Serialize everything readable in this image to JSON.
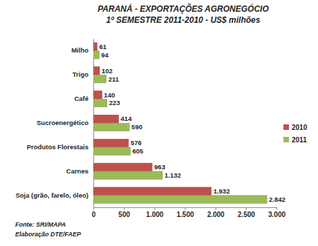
{
  "chart_data": {
    "type": "bar",
    "orientation": "horizontal",
    "title": "PARANÁ - EXPORTAÇÕES AGRONEGÓCIO",
    "subtitle": "1º SEMESTRE 2011-2010  - US$ milhões",
    "categories": [
      "Milho",
      "Trigo",
      "Café",
      "Sucroenergético",
      "Produtos Florestais",
      "Carnes",
      "Soja (grão, farelo, óleo)"
    ],
    "series": [
      {
        "name": "2010",
        "color": "#c0504d",
        "values": [
          61,
          102,
          140,
          414,
          576,
          963,
          1932
        ],
        "value_labels": [
          "61",
          "102",
          "140",
          "414",
          "576",
          "963",
          "1.932"
        ]
      },
      {
        "name": "2011",
        "color": "#9bbb59",
        "values": [
          94,
          211,
          223,
          590,
          605,
          1132,
          2842
        ],
        "value_labels": [
          "94",
          "211",
          "223",
          "590",
          "605",
          "1.132",
          "2.842"
        ]
      }
    ],
    "xlim": [
      0,
      3000
    ],
    "xticks": [
      0,
      500,
      {
        "value": 1000,
        "label": "1.000"
      },
      {
        "value": 1500,
        "label": "1.500"
      },
      {
        "value": 2000,
        "label": "2.000"
      },
      {
        "value": 2500,
        "label": "2.500"
      },
      {
        "value": 3000,
        "label": "3.000"
      }
    ],
    "grid": false,
    "legend": "right",
    "data_labels": true,
    "annotations": [
      "Fonte: SRI/MAPA",
      "Elaboração DTE/FAEP"
    ]
  }
}
